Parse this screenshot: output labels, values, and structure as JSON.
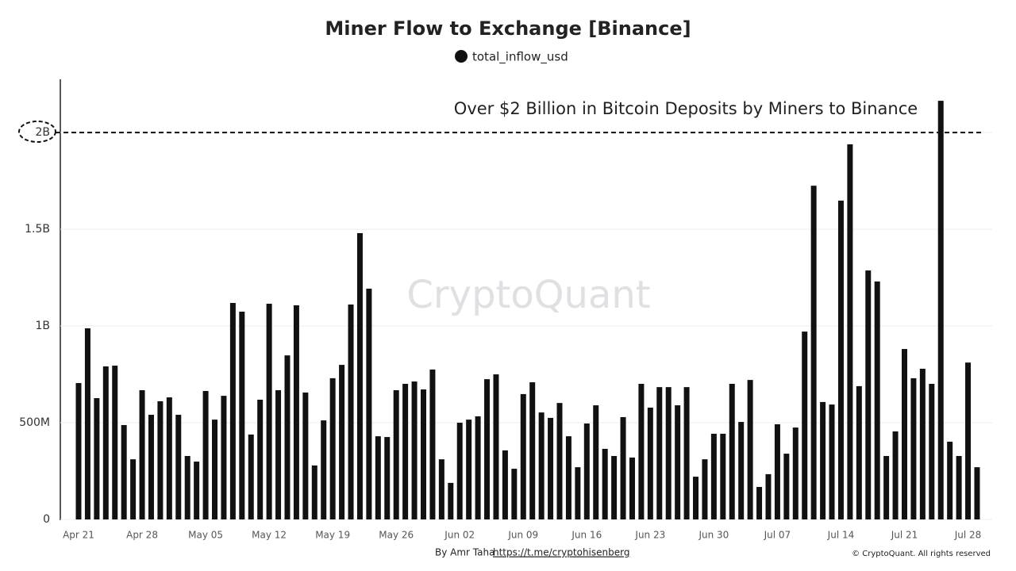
{
  "chart_data": {
    "type": "bar",
    "title": "Miner Flow to Exchange [Binance]",
    "series": [
      {
        "name": "total_inflow_usd",
        "color": "#111111",
        "values": [
          705000000,
          988000000,
          627000000,
          791000000,
          795000000,
          488000000,
          311000000,
          668000000,
          541000000,
          611000000,
          631000000,
          541000000,
          328000000,
          299000000,
          664000000,
          516000000,
          639000000,
          1119000000,
          1074000000,
          439000000,
          619000000,
          1115000000,
          668000000,
          848000000,
          1107000000,
          656000000,
          279000000,
          512000000,
          730000000,
          799000000,
          1111000000,
          1480000000,
          1193000000,
          430000000,
          426000000,
          668000000,
          701000000,
          713000000,
          672000000,
          775000000,
          311000000,
          189000000,
          500000000,
          516000000,
          533000000,
          725000000,
          750000000,
          357000000,
          262000000,
          648000000,
          709000000,
          553000000,
          525000000,
          602000000,
          430000000,
          270000000,
          496000000,
          590000000,
          365000000,
          328000000,
          529000000,
          320000000,
          701000000,
          578000000,
          684000000,
          684000000,
          590000000,
          684000000,
          221000000,
          311000000,
          443000000,
          443000000,
          701000000,
          504000000,
          721000000,
          168000000,
          234000000,
          492000000,
          340000000,
          475000000,
          971000000,
          1725000000,
          607000000,
          594000000,
          1648000000,
          1939000000,
          689000000,
          1287000000,
          1230000000,
          328000000,
          455000000,
          881000000,
          730000000,
          779000000,
          701000000,
          2164000000,
          402000000,
          328000000,
          811000000,
          270000000
        ]
      }
    ],
    "categories": [
      "Apr 21",
      null,
      null,
      null,
      null,
      null,
      null,
      "Apr 28",
      null,
      null,
      null,
      null,
      null,
      null,
      "May 05",
      null,
      null,
      null,
      null,
      null,
      null,
      "May 12",
      null,
      null,
      null,
      null,
      null,
      null,
      "May 19",
      null,
      null,
      null,
      null,
      null,
      null,
      "May 26",
      null,
      null,
      null,
      null,
      null,
      null,
      "Jun 02",
      null,
      null,
      null,
      null,
      null,
      null,
      "Jun 09",
      null,
      null,
      null,
      null,
      null,
      null,
      "Jun 16",
      null,
      null,
      null,
      null,
      null,
      null,
      "Jun 23",
      null,
      null,
      null,
      null,
      null,
      null,
      "Jun 30",
      null,
      null,
      null,
      null,
      null,
      null,
      "Jul 07",
      null,
      null,
      null,
      null,
      null,
      null,
      "Jul 14",
      null,
      null,
      null,
      null,
      null,
      null,
      "Jul 21",
      null,
      null,
      null,
      null,
      null,
      null,
      "Jul 28",
      null
    ],
    "ylim": [
      0,
      2275000000
    ],
    "yticks": [
      0,
      {
        "value": 500000000,
        "label": "500M"
      },
      {
        "value": 1000000000,
        "label": "1B"
      },
      {
        "value": 1500000000,
        "label": "1.5B"
      },
      {
        "value": 2000000000,
        "label": "2B"
      }
    ],
    "grid": true,
    "reference_line": {
      "value": 2000000000,
      "label": "Over $2 Billion in Bitcoin Deposits by Miners to Binance"
    },
    "watermark": "CryptoQuant",
    "footer": {
      "author": "By Amr Taha",
      "link": "https://t.me/cryptohisenberg",
      "copyright": "© CryptoQuant. All rights reserved"
    }
  }
}
